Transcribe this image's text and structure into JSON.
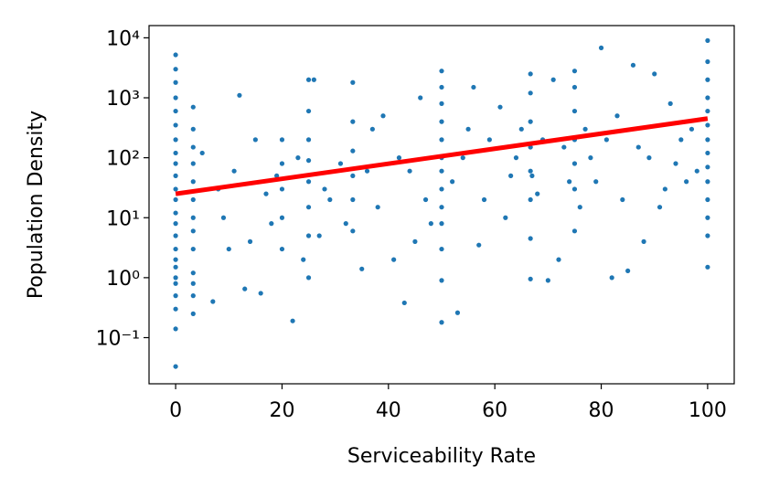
{
  "chart_data": {
    "type": "scatter",
    "xlabel": "Serviceability Rate",
    "ylabel": "Population Density",
    "yscale": "log",
    "xlim": [
      -5,
      105
    ],
    "ylim": [
      0.017,
      16000
    ],
    "xticks": [
      0,
      20,
      40,
      60,
      80,
      100
    ],
    "yticks": [
      {
        "value": 0.1,
        "label": "10⁻¹"
      },
      {
        "value": 1,
        "label": "10⁰"
      },
      {
        "value": 10,
        "label": "10¹"
      },
      {
        "value": 100,
        "label": "10²"
      },
      {
        "value": 1000,
        "label": "10³"
      },
      {
        "value": 10000,
        "label": "10⁴"
      }
    ],
    "color": "#1f77b4",
    "x": [
      0,
      0,
      0,
      0,
      0,
      0,
      0,
      0,
      0,
      0,
      0,
      0,
      0,
      0,
      0,
      0,
      0,
      0,
      0,
      0,
      0,
      0,
      0,
      0,
      3.3,
      3.3,
      3.3,
      3.3,
      3.3,
      3.3,
      3.3,
      3.3,
      3.3,
      3.3,
      3.3,
      3.3,
      3.3,
      100,
      100,
      100,
      100,
      100,
      100,
      100,
      100,
      100,
      100,
      100,
      100,
      100,
      100,
      50,
      50,
      50,
      50,
      50,
      50,
      50,
      50,
      50,
      50,
      50,
      50,
      50,
      66.7,
      66.7,
      66.7,
      66.7,
      66.7,
      66.7,
      66.7,
      66.7,
      25,
      25,
      25,
      25,
      25,
      25,
      25,
      25,
      33.3,
      33.3,
      33.3,
      33.3,
      33.3,
      33.3,
      75,
      75,
      75,
      75,
      75,
      75,
      75,
      20,
      20,
      20,
      20,
      20,
      7,
      10,
      12,
      13,
      16,
      22,
      27,
      35,
      43,
      53,
      57,
      70,
      72,
      78,
      80,
      82,
      85,
      88,
      90,
      92,
      94,
      96,
      5,
      8,
      11,
      15,
      18,
      24,
      29,
      31,
      37,
      38,
      41,
      44,
      46,
      48,
      52,
      55,
      58,
      61,
      63,
      65,
      68,
      71,
      73,
      77,
      79,
      83,
      86,
      87,
      91,
      93,
      97,
      98,
      9,
      14,
      17,
      19,
      23,
      26,
      28,
      32,
      36,
      39,
      42,
      45,
      47,
      54,
      56,
      59,
      62,
      64,
      67,
      69,
      74,
      76,
      81,
      84,
      89,
      95
    ],
    "values": [
      0.033,
      0.14,
      0.3,
      0.5,
      0.8,
      1,
      1.5,
      2,
      3,
      5,
      8,
      12,
      20,
      30,
      50,
      80,
      120,
      200,
      350,
      600,
      1000,
      1800,
      3000,
      5200,
      0.25,
      0.5,
      0.8,
      1.2,
      3,
      6,
      10,
      20,
      40,
      80,
      150,
      300,
      700,
      1.5,
      5,
      10,
      20,
      40,
      70,
      120,
      200,
      350,
      600,
      1000,
      2000,
      4000,
      9000,
      0.18,
      0.9,
      3,
      8,
      15,
      30,
      60,
      100,
      200,
      400,
      800,
      1500,
      2800,
      0.95,
      4.5,
      20,
      60,
      150,
      400,
      1200,
      2500,
      1,
      5,
      15,
      40,
      90,
      200,
      600,
      2000,
      6,
      20,
      50,
      130,
      400,
      1800,
      6,
      30,
      80,
      200,
      600,
      1500,
      2800,
      3,
      10,
      30,
      80,
      200,
      0.4,
      3,
      1100,
      0.65,
      0.55,
      0.19,
      5,
      1.4,
      0.38,
      0.26,
      3.5,
      0.9,
      2,
      100,
      6800,
      1,
      1.3,
      4,
      2500,
      30,
      80,
      40,
      120,
      30,
      60,
      200,
      8,
      2,
      20,
      80,
      300,
      15,
      2,
      60,
      1000,
      8,
      40,
      300,
      20,
      700,
      50,
      300,
      25,
      2000,
      150,
      300,
      40,
      500,
      3500,
      150,
      15,
      800,
      300,
      60,
      10,
      4,
      25,
      50,
      100,
      2000,
      30,
      8,
      60,
      500,
      100,
      4,
      20,
      100,
      1500,
      200,
      10,
      100,
      50,
      200,
      40,
      15,
      200,
      20,
      100,
      200
    ],
    "trend": {
      "x": [
        0,
        100
      ],
      "values": [
        25,
        450
      ],
      "color": "#ff0000"
    }
  }
}
